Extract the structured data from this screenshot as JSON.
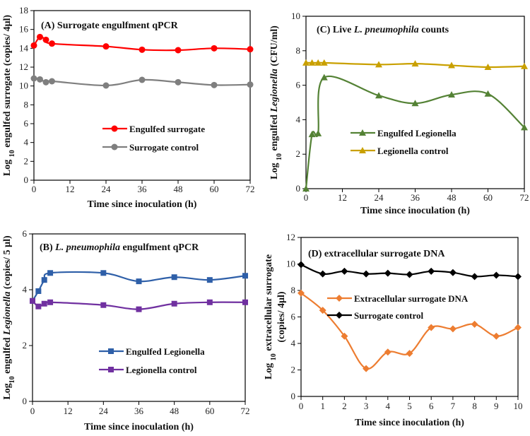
{
  "chart_data": [
    {
      "id": "A",
      "type": "line",
      "title_parts": [
        {
          "text": "(A) Surrogate engulfment qPCR",
          "italic": false
        }
      ],
      "ylabel_parts": [
        {
          "text": "Log ",
          "italic": false
        },
        {
          "text": "10",
          "sub": true
        },
        {
          "text": " engulfed surrogate (copies/ 4µl)",
          "italic": false
        }
      ],
      "xlabel": "Time since inoculation (h)",
      "xlim": [
        0,
        72
      ],
      "ylim": [
        0,
        18
      ],
      "xticks": [
        0,
        12,
        24,
        36,
        48,
        60,
        72
      ],
      "yticks": [
        0,
        2,
        4,
        6,
        8,
        10,
        12,
        14,
        16,
        18
      ],
      "legend": "center-right",
      "series": [
        {
          "name": "Engulfed surrogate",
          "color": "#ff0000",
          "marker": "circle",
          "x": [
            0,
            2,
            4,
            6,
            24,
            36,
            48,
            60,
            72
          ],
          "y": [
            14.3,
            15.2,
            14.9,
            14.5,
            14.2,
            13.85,
            13.8,
            14.0,
            13.9
          ]
        },
        {
          "name": "Surrogate control",
          "color": "#7f7f7f",
          "marker": "circle",
          "x": [
            0,
            2,
            4,
            6,
            24,
            36,
            48,
            60,
            72
          ],
          "y": [
            10.8,
            10.7,
            10.4,
            10.5,
            10.05,
            10.65,
            10.4,
            10.1,
            10.15
          ]
        }
      ]
    },
    {
      "id": "C",
      "type": "line",
      "title_parts": [
        {
          "text": "(C) Live ",
          "italic": false
        },
        {
          "text": "L. pneumophila",
          "italic": true
        },
        {
          "text": " counts",
          "italic": false
        }
      ],
      "ylabel_parts": [
        {
          "text": "Log ",
          "italic": false
        },
        {
          "text": "10",
          "sub": true
        },
        {
          "text": " engulfed ",
          "italic": false
        },
        {
          "text": "Legionella",
          "italic": true
        },
        {
          "text": " (CFU/ml)",
          "italic": false
        }
      ],
      "xlabel": "Time since inoculation (h)",
      "xlim": [
        0,
        72
      ],
      "ylim": [
        0,
        10
      ],
      "xticks": [
        0,
        12,
        24,
        36,
        48,
        60,
        72
      ],
      "yticks": [
        0,
        2,
        4,
        6,
        8,
        10
      ],
      "legend": "lower-center",
      "series": [
        {
          "name": "Engulfed Legionella",
          "color": "#548235",
          "marker": "triangle",
          "x": [
            0,
            2,
            4,
            6,
            24,
            36,
            48,
            60,
            72
          ],
          "y": [
            0,
            3.15,
            3.2,
            6.45,
            5.4,
            4.95,
            5.45,
            5.5,
            3.55
          ]
        },
        {
          "name": "Legionella control",
          "color": "#c9a000",
          "marker": "triangle",
          "x": [
            0,
            2,
            4,
            6,
            24,
            36,
            48,
            60,
            72
          ],
          "y": [
            7.3,
            7.3,
            7.3,
            7.3,
            7.2,
            7.25,
            7.15,
            7.05,
            7.1
          ]
        }
      ]
    },
    {
      "id": "B",
      "type": "line",
      "title_parts": [
        {
          "text": "(B) ",
          "italic": false
        },
        {
          "text": "L. pneumophila",
          "italic": true
        },
        {
          "text": " engulfment qPCR",
          "italic": false
        }
      ],
      "ylabel_parts": [
        {
          "text": "Log",
          "italic": false
        },
        {
          "text": "10",
          "sub": true
        },
        {
          "text": " engulfed ",
          "italic": false
        },
        {
          "text": "Legionella",
          "italic": true
        },
        {
          "text": " (copies/ 5 µl)",
          "italic": false
        }
      ],
      "xlabel": "Time since inoculation (h)",
      "xlim": [
        0,
        72
      ],
      "ylim": [
        0,
        6
      ],
      "xticks": [
        0,
        12,
        24,
        36,
        48,
        60,
        72
      ],
      "yticks": [
        0,
        2,
        4,
        6
      ],
      "legend": "lower-center",
      "series": [
        {
          "name": "Engulfed Legionella",
          "color": "#2e5fa8",
          "marker": "square",
          "x": [
            0,
            2,
            4,
            6,
            24,
            36,
            48,
            60,
            72
          ],
          "y": [
            3.6,
            3.95,
            4.35,
            4.6,
            4.6,
            4.3,
            4.45,
            4.35,
            4.5
          ]
        },
        {
          "name": "Legionella control",
          "color": "#7030a0",
          "marker": "square",
          "x": [
            0,
            2,
            4,
            6,
            24,
            36,
            48,
            60,
            72
          ],
          "y": [
            3.6,
            3.4,
            3.5,
            3.55,
            3.45,
            3.3,
            3.5,
            3.55,
            3.55
          ]
        }
      ]
    },
    {
      "id": "D",
      "type": "line",
      "title_parts": [
        {
          "text": "(D) extracellular surrogate DNA",
          "italic": false
        }
      ],
      "ylabel_parts": [
        {
          "text": "Log ",
          "italic": false
        },
        {
          "text": "10",
          "sub": true
        },
        {
          "text": " extracellular surrogate",
          "italic": false
        }
      ],
      "ylabel_line2": "(copies/ 4µl)",
      "xlabel": "Time since inoculation (h)",
      "xlim": [
        0,
        10
      ],
      "ylim": [
        0,
        12
      ],
      "xticks": [
        0,
        1,
        2,
        3,
        4,
        5,
        6,
        7,
        8,
        9,
        10
      ],
      "yticks": [
        0,
        2,
        4,
        6,
        8,
        10,
        12
      ],
      "legend": "center",
      "series": [
        {
          "name": "Extracellular surrogate DNA",
          "color": "#ed7d31",
          "marker": "diamond",
          "x": [
            0,
            1,
            2,
            3,
            4,
            5,
            6,
            7,
            8,
            9,
            10
          ],
          "y": [
            7.8,
            6.5,
            4.55,
            2.1,
            3.35,
            3.25,
            5.2,
            5.1,
            5.45,
            4.55,
            5.2
          ]
        },
        {
          "name": "Surrogate control",
          "color": "#000000",
          "marker": "diamond",
          "x": [
            0,
            1,
            2,
            3,
            4,
            5,
            6,
            7,
            8,
            9,
            10
          ],
          "y": [
            9.95,
            9.25,
            9.45,
            9.25,
            9.3,
            9.2,
            9.45,
            9.35,
            9.05,
            9.15,
            9.05
          ]
        }
      ]
    }
  ]
}
